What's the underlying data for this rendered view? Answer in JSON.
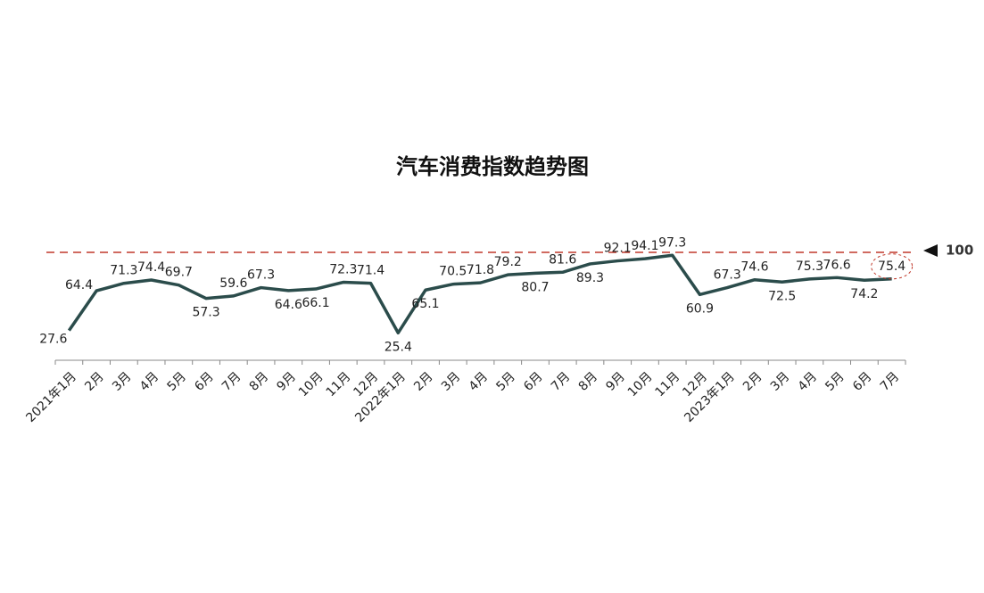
{
  "chart_data": {
    "type": "line",
    "title": "汽车消费指数趋势图",
    "categories": [
      "2021年1月",
      "2月",
      "3月",
      "4月",
      "5月",
      "6月",
      "7月",
      "8月",
      "9月",
      "10月",
      "11月",
      "12月",
      "2022年1月",
      "2月",
      "3月",
      "4月",
      "5月",
      "6月",
      "7月",
      "8月",
      "9月",
      "10月",
      "11月",
      "12月",
      "2023年1月",
      "2月",
      "3月",
      "4月",
      "5月",
      "6月",
      "7月"
    ],
    "series": [
      {
        "color": "#2b4c4b",
        "values": [
          27.6,
          64.4,
          71.3,
          74.4,
          69.7,
          57.3,
          59.6,
          67.3,
          64.6,
          66.1,
          72.3,
          71.4,
          25.4,
          65.1,
          70.5,
          71.8,
          79.2,
          80.7,
          81.6,
          89.3,
          92.1,
          94.1,
          97.3,
          60.9,
          67.3,
          74.6,
          72.5,
          75.3,
          76.6,
          74.2,
          75.4
        ]
      }
    ],
    "ylim": [
      0,
      100
    ],
    "reference_line": 100,
    "reference_color": "#c0392b"
  }
}
